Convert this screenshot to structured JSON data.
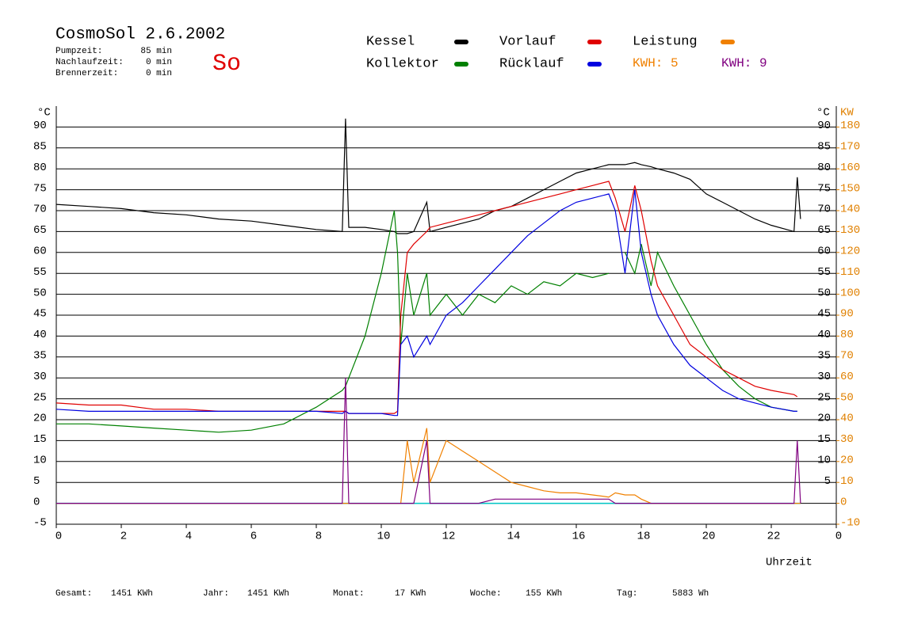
{
  "chart_data": {
    "type": "line",
    "title": "CosmoSol 2.6.2002",
    "day": "So",
    "status": [
      {
        "label": "Pumpzeit:",
        "value": "85 min"
      },
      {
        "label": "Nachlaufzeit:",
        "value": "0 min"
      },
      {
        "label": "Brennerzeit:",
        "value": "0 min"
      }
    ],
    "y_label": "°C",
    "y2_label": "KW",
    "y2_unit_label": "°C",
    "x_label": "Uhrzeit",
    "annotations": [
      {
        "text": "KWH: 5",
        "color": "#f08000"
      },
      {
        "text": "KWH: 9",
        "color": "#800080"
      }
    ],
    "footer": [
      {
        "label": "Gesamt:",
        "value": "1451 KWh"
      },
      {
        "label": "Jahr:",
        "value": "1451 KWh"
      },
      {
        "label": "Monat:",
        "value": "17 KWh"
      },
      {
        "label": "Woche:",
        "value": "155 KWh"
      },
      {
        "label": "Tag:",
        "value": "5883 Wh"
      }
    ],
    "grid": true,
    "baseline_color": "#00c8c8",
    "xlim": [
      0,
      24
    ],
    "xticks": [
      0,
      2,
      4,
      6,
      8,
      10,
      12,
      14,
      16,
      18,
      20,
      22,
      {
        "value": 24,
        "label": "0"
      }
    ],
    "ylim": [
      -5,
      95
    ],
    "yticks": [
      -5,
      0,
      5,
      10,
      15,
      20,
      25,
      30,
      35,
      40,
      45,
      50,
      55,
      60,
      65,
      70,
      75,
      80,
      85,
      90
    ],
    "y2lim": [
      -10,
      190
    ],
    "y2ticks": [
      -10,
      0,
      10,
      20,
      30,
      40,
      50,
      60,
      70,
      80,
      90,
      100,
      110,
      120,
      130,
      140,
      150,
      160,
      170,
      180
    ],
    "x": [
      0,
      1,
      2,
      3,
      4,
      5,
      6,
      7,
      8,
      8.8,
      8.9,
      9.0,
      9.5,
      10,
      10.4,
      10.5,
      10.6,
      10.8,
      11,
      11.4,
      11.5,
      12,
      12.5,
      13,
      13.5,
      14,
      14.5,
      15,
      15.5,
      16,
      16.5,
      17,
      17.2,
      17.5,
      17.8,
      18,
      18.3,
      18.5,
      19,
      19.5,
      20,
      20.5,
      21,
      21.5,
      22,
      22.7,
      22.8,
      22.9
    ],
    "series": [
      {
        "name": "Kessel",
        "color": "#000000",
        "values": [
          71.5,
          71,
          70.5,
          69.5,
          69,
          68,
          67.5,
          66.5,
          65.5,
          65,
          92,
          66,
          66,
          65.5,
          65,
          64.5,
          64.5,
          64.5,
          65,
          72,
          65,
          66,
          67,
          68,
          70,
          71,
          73,
          75,
          77,
          79,
          80,
          81,
          81,
          81,
          81.5,
          81,
          80.5,
          80,
          79,
          77.5,
          74,
          72,
          70,
          68,
          66.5,
          65,
          78,
          68
        ]
      },
      {
        "name": "Kollektor",
        "color": "#008000",
        "values": [
          19,
          19,
          18.5,
          18,
          17.5,
          17,
          17.5,
          19,
          23,
          27,
          28,
          30,
          40,
          55,
          70,
          60,
          38,
          55,
          45,
          55,
          45,
          50,
          45,
          50,
          48,
          52,
          50,
          53,
          52,
          55,
          54,
          55,
          null,
          60,
          55,
          62,
          52,
          60,
          52,
          45,
          38,
          32,
          28,
          25,
          23,
          22,
          22,
          null
        ]
      },
      {
        "name": "Vorlauf",
        "color": "#e00000",
        "values": [
          24,
          23.5,
          23.5,
          22.5,
          22.5,
          22,
          22,
          22,
          22,
          22,
          22,
          21.5,
          21.5,
          21.5,
          21.5,
          22,
          45,
          60,
          62,
          65,
          66,
          67,
          68,
          69,
          70,
          71,
          72,
          73,
          74,
          75,
          76,
          77,
          73,
          65,
          76,
          70,
          58,
          52,
          45,
          38,
          35,
          32,
          30,
          28,
          27,
          26,
          25.5,
          null
        ]
      },
      {
        "name": "Rücklauf",
        "color": "#0000e0",
        "values": [
          22.5,
          22,
          22,
          22,
          22,
          22,
          22,
          22,
          22,
          21.5,
          22,
          21.5,
          21.5,
          21.5,
          21,
          21,
          38,
          40,
          35,
          40,
          38,
          45,
          48,
          52,
          56,
          60,
          64,
          67,
          70,
          72,
          73,
          74,
          70,
          55,
          75,
          60,
          50,
          45,
          38,
          33,
          30,
          27,
          25,
          24,
          23,
          22,
          22,
          null
        ]
      },
      {
        "name": "Leistung",
        "color": "#f08000",
        "axis": "y2",
        "values": [
          0,
          0,
          0,
          0,
          0,
          0,
          0,
          0,
          0,
          0,
          0,
          0,
          0,
          0,
          0,
          0,
          0,
          30,
          10,
          36,
          10,
          30,
          25,
          20,
          15,
          10,
          8,
          6,
          5,
          5,
          4,
          3,
          5,
          4,
          4,
          2,
          0,
          0,
          0,
          0,
          0,
          0,
          0,
          0,
          0,
          0,
          0,
          0
        ]
      },
      {
        "color": "#800080",
        "axis": "y2",
        "values": [
          0,
          0,
          0,
          0,
          0,
          0,
          0,
          0,
          0,
          0,
          60,
          0,
          0,
          0,
          0,
          0,
          0,
          0,
          0,
          30,
          0,
          0,
          0,
          0,
          2,
          2,
          2,
          2,
          2,
          2,
          2,
          2,
          0,
          0,
          0,
          0,
          0,
          0,
          0,
          0,
          0,
          0,
          0,
          0,
          0,
          0,
          30,
          0
        ]
      }
    ]
  }
}
